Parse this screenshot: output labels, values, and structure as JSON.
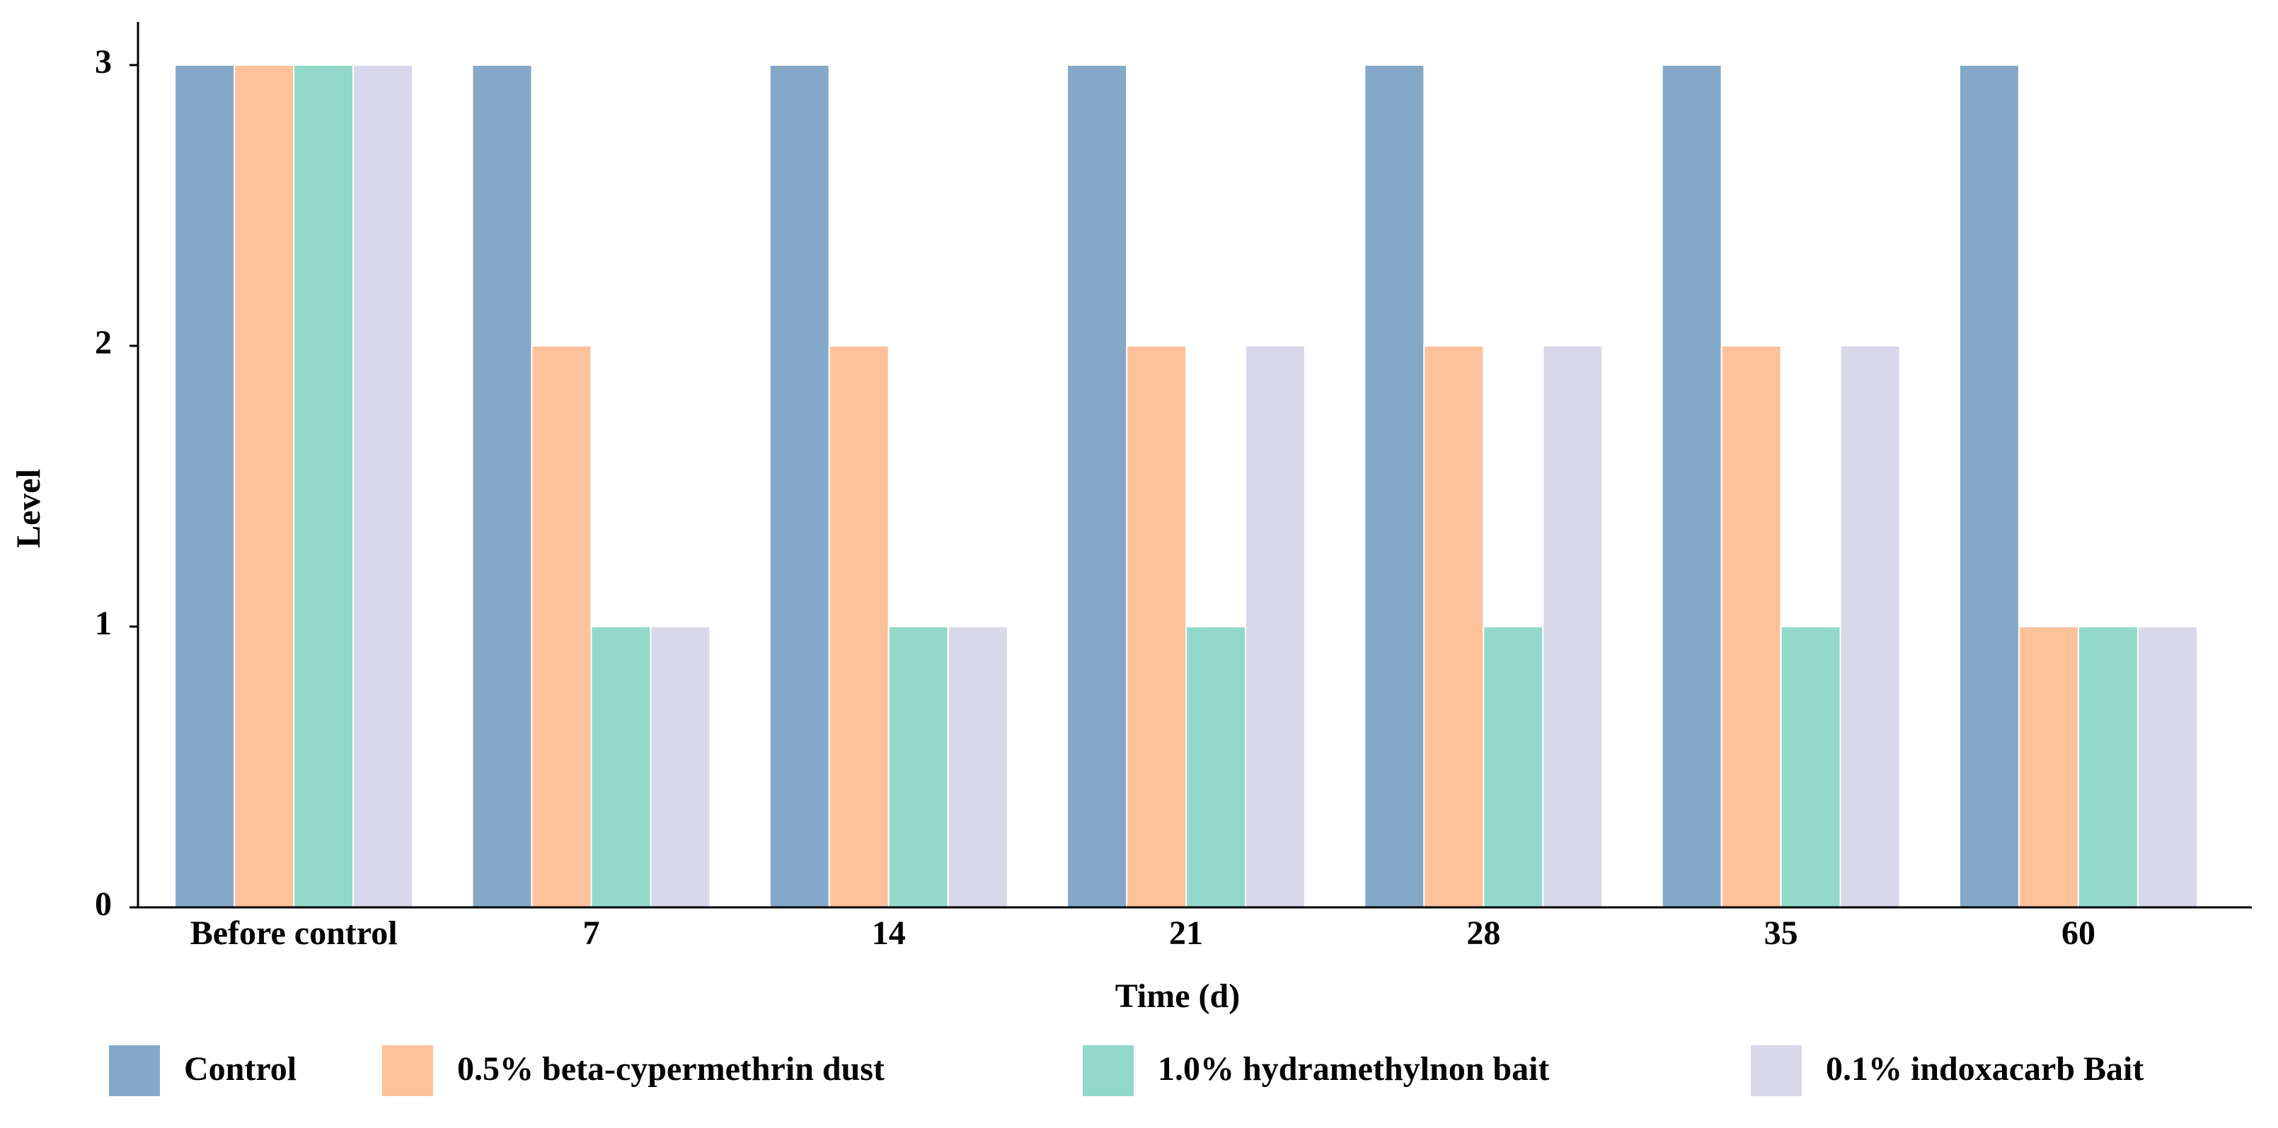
{
  "chart_data": {
    "type": "bar",
    "x_label": "Time (d)",
    "y_label": "Level",
    "categories": [
      "Before control",
      "7",
      "14",
      "21",
      "28",
      "35",
      "60"
    ],
    "series": [
      {
        "name": "Control",
        "color": "#84a9c8",
        "values": [
          3,
          3,
          3,
          3,
          3,
          3,
          3
        ]
      },
      {
        "name": "0.5% beta-cypermethrin dust",
        "color": "#fdc19c",
        "values": [
          3,
          2,
          2,
          2,
          2,
          2,
          1
        ]
      },
      {
        "name": "1.0% hydramethylnon bait",
        "color": "#92d9c9",
        "values": [
          3,
          1,
          1,
          1,
          1,
          1,
          1
        ]
      },
      {
        "name": "0.1% indoxacarb Bait",
        "color": "#d9d7ea",
        "values": [
          3,
          1,
          1,
          2,
          2,
          2,
          1
        ]
      }
    ],
    "ylim": [
      0,
      3
    ],
    "yticks": [
      0,
      1,
      2,
      3
    ],
    "legend": "bottom"
  }
}
